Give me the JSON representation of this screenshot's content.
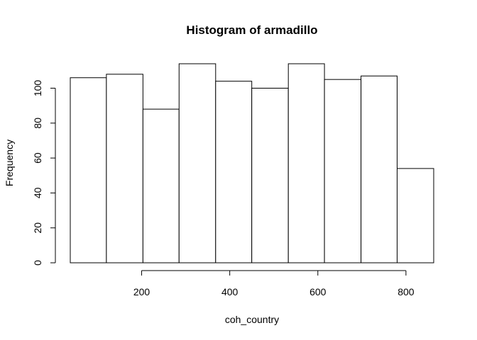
{
  "chart_data": {
    "type": "bar",
    "title": "Histogram of armadillo",
    "xlabel": "coh_country",
    "ylabel": "Frequency",
    "bins": [
      {
        "x0": 38,
        "x1": 120,
        "count": 106
      },
      {
        "x0": 120,
        "x1": 203,
        "count": 108
      },
      {
        "x0": 203,
        "x1": 285,
        "count": 88
      },
      {
        "x0": 285,
        "x1": 368,
        "count": 114
      },
      {
        "x0": 368,
        "x1": 450,
        "count": 104
      },
      {
        "x0": 450,
        "x1": 533,
        "count": 100
      },
      {
        "x0": 533,
        "x1": 615,
        "count": 114
      },
      {
        "x0": 615,
        "x1": 698,
        "count": 105
      },
      {
        "x0": 698,
        "x1": 780,
        "count": 107
      },
      {
        "x0": 780,
        "x1": 863,
        "count": 54
      }
    ],
    "xticks": [
      200,
      400,
      600,
      800
    ],
    "yticks": [
      0,
      20,
      40,
      60,
      80,
      100
    ],
    "xlim": [
      38,
      863
    ],
    "ylim": [
      0,
      114
    ],
    "grid": false
  }
}
